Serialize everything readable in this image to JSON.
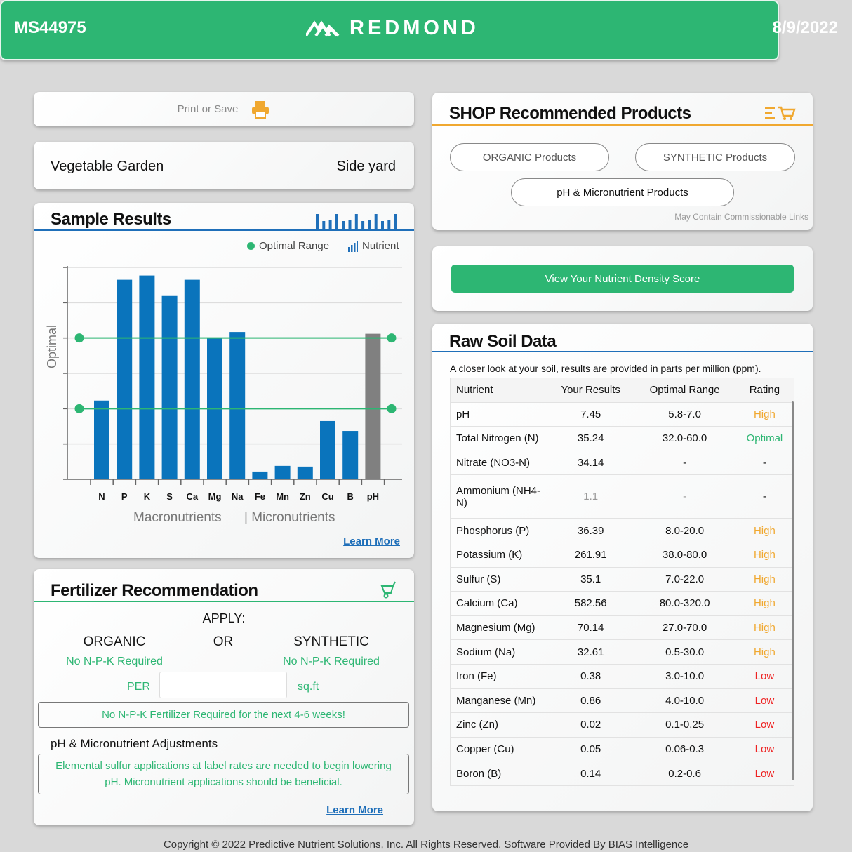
{
  "header": {
    "sample_id": "MS44975",
    "logo_text": "REDMOND",
    "date": "8/9/2022"
  },
  "print": {
    "label": "Print or Save"
  },
  "location": {
    "name": "Vegetable Garden",
    "area": "Side yard"
  },
  "sample_results": {
    "title": "Sample Results",
    "legend_optimal": "Optimal Range",
    "legend_nutrient": "Nutrient",
    "y_label": "Optimal",
    "group_macro": "Macronutrients",
    "group_micro": "| Micronutrients",
    "learn_more": "Learn More"
  },
  "chart_data": {
    "type": "bar",
    "categories": [
      "N",
      "P",
      "K",
      "S",
      "Ca",
      "Mg",
      "Na",
      "Fe",
      "Mn",
      "Zn",
      "Cu",
      "B",
      "pH"
    ],
    "values": [
      2.23,
      5.65,
      5.77,
      5.19,
      5.65,
      4.0,
      4.17,
      0.22,
      0.38,
      0.36,
      1.65,
      1.37,
      4.12
    ],
    "bar_colors": [
      "#0a74bc",
      "#0a74bc",
      "#0a74bc",
      "#0a74bc",
      "#0a74bc",
      "#0a74bc",
      "#0a74bc",
      "#0a74bc",
      "#0a74bc",
      "#0a74bc",
      "#0a74bc",
      "#0a74bc",
      "#808080"
    ],
    "optimal_range": [
      2,
      4
    ],
    "ylim": [
      0,
      6
    ],
    "ylabel": "Optimal",
    "grid": true,
    "legend": "top-right",
    "optimal_color": "#2db673"
  },
  "fertilizer": {
    "title": "Fertilizer Recommendation",
    "apply": "APPLY:",
    "organic": "ORGANIC",
    "or": "OR",
    "synthetic": "SYNTHETIC",
    "organic_value": "No N-P-K Required",
    "synthetic_value": "No N-P-K Required",
    "per": "PER",
    "area_value": "",
    "unit": "sq.ft",
    "notice": "No N-P-K Fertilizer Required for the next 4-6 weeks!",
    "adjust_title": "pH & Micronutrient Adjustments",
    "adjust_text": "Elemental sulfur applications at label rates are needed to begin lowering pH. Micronutrient applications should be beneficial.",
    "learn_more": "Learn More"
  },
  "shop": {
    "title": "SHOP Recommended Products",
    "organic": "ORGANIC Products",
    "synthetic": "SYNTHETIC Products",
    "micro": "pH & Micronutrient Products",
    "disclaimer": "May Contain Commissionable Links"
  },
  "density": {
    "button": "View Your Nutrient Density Score"
  },
  "raw": {
    "title": "Raw Soil Data",
    "intro": "A closer look at your soil, results are provided in parts per million (ppm).",
    "columns": [
      "Nutrient",
      "Your Results",
      "Optimal Range",
      "Rating"
    ],
    "rows": [
      [
        "pH",
        "7.45",
        "5.8-7.0",
        "High"
      ],
      [
        "Total Nitrogen (N)",
        "35.24",
        "32.0-60.0",
        "Optimal"
      ],
      [
        "Nitrate (NO3-N)",
        "34.14",
        "-",
        "-"
      ],
      [
        "Ammonium (NH4-N)",
        "1.1",
        "-",
        "-"
      ],
      [
        "Phosphorus (P)",
        "36.39",
        "8.0-20.0",
        "High"
      ],
      [
        "Potassium (K)",
        "261.91",
        "38.0-80.0",
        "High"
      ],
      [
        "Sulfur (S)",
        "35.1",
        "7.0-22.0",
        "High"
      ],
      [
        "Calcium (Ca)",
        "582.56",
        "80.0-320.0",
        "High"
      ],
      [
        "Magnesium (Mg)",
        "70.14",
        "27.0-70.0",
        "High"
      ],
      [
        "Sodium (Na)",
        "32.61",
        "0.5-30.0",
        "High"
      ],
      [
        "Iron (Fe)",
        "0.38",
        "3.0-10.0",
        "Low"
      ],
      [
        "Manganese (Mn)",
        "0.86",
        "4.0-10.0",
        "Low"
      ],
      [
        "Zinc (Zn)",
        "0.02",
        "0.1-0.25",
        "Low"
      ],
      [
        "Copper (Cu)",
        "0.05",
        "0.06-0.3",
        "Low"
      ],
      [
        "Boron (B)",
        "0.14",
        "0.2-0.6",
        "Low"
      ]
    ]
  },
  "footer": "Copyright © 2022 Predictive Nutrient Solutions, Inc. All Rights Reserved. Software Provided By BIAS Intelligence"
}
